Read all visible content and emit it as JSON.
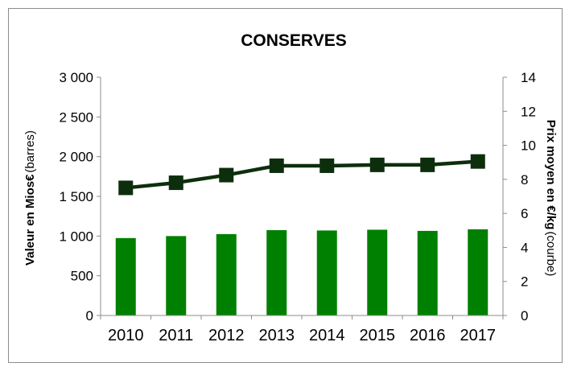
{
  "chart_data": {
    "type": "bar",
    "title": "CONSERVES",
    "categories": [
      "2010",
      "2011",
      "2012",
      "2013",
      "2014",
      "2015",
      "2016",
      "2017"
    ],
    "ylabel_left_bold": "Valeur en Mios€",
    "ylabel_left_normal": "(barres)",
    "ylabel_right_bold": "Prix moyen en €/kg",
    "ylabel_right_normal": "(courbe)",
    "ylim_left": [
      0,
      3000
    ],
    "ylim_right": [
      0,
      14
    ],
    "yticks_left": [
      "0",
      "500",
      "1 000",
      "1 500",
      "2 000",
      "2 500",
      "3 000"
    ],
    "yticks_right": [
      "0",
      "2",
      "4",
      "6",
      "8",
      "10",
      "12",
      "14"
    ],
    "series": [
      {
        "type": "bar",
        "axis": "left",
        "color": "#008000",
        "values": [
          975,
          1000,
          1025,
          1075,
          1070,
          1080,
          1065,
          1085
        ]
      },
      {
        "type": "line",
        "axis": "right",
        "color": "#0c2e0c",
        "values": [
          7.5,
          7.8,
          8.25,
          8.8,
          8.8,
          8.85,
          8.85,
          9.05
        ]
      }
    ],
    "grid": false,
    "legend": "none"
  }
}
